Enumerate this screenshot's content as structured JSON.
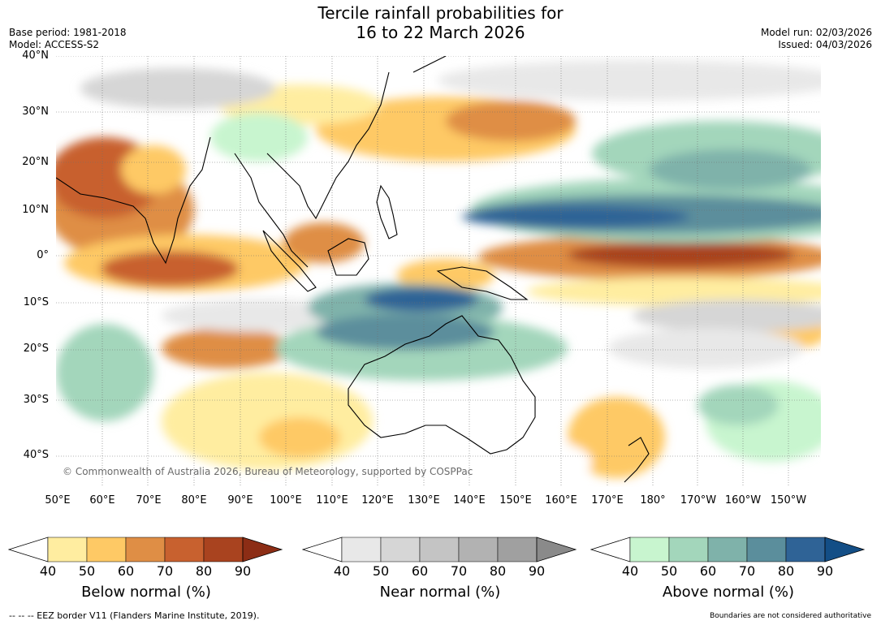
{
  "title_line1": "Tercile rainfall probabilities for",
  "title_line2": "16 to 22 March 2026",
  "base_period": "Base period: 1981-2018",
  "model": "Model: ACCESS-S2",
  "model_run": "Model run: 02/03/2026",
  "issued": "Issued: 04/03/2026",
  "lat_labels": [
    "40°N",
    "30°N",
    "20°N",
    "10°N",
    "0°",
    "10°S",
    "20°S",
    "30°S",
    "40°S"
  ],
  "lon_labels": [
    "50°E",
    "60°E",
    "70°E",
    "80°E",
    "90°E",
    "100°E",
    "110°E",
    "120°E",
    "130°E",
    "140°E",
    "150°E",
    "160°E",
    "170°E",
    "180°",
    "170°W",
    "160°W",
    "150°W"
  ],
  "copyright": "© Commonwealth of Australia 2026, Bureau of Meteorology, supported by COSPPac",
  "legends": [
    {
      "title": "Below normal (%)",
      "ticks": [
        "40",
        "50",
        "60",
        "70",
        "80",
        "90"
      ],
      "colors": [
        "#ffffff",
        "#ffeda0",
        "#fec965",
        "#df8e45",
        "#c8612f",
        "#a9431f",
        "#8c2d15"
      ]
    },
    {
      "title": "Near normal (%)",
      "ticks": [
        "40",
        "50",
        "60",
        "70",
        "80",
        "90"
      ],
      "colors": [
        "#ffffff",
        "#e8e8e8",
        "#d6d6d6",
        "#c4c4c4",
        "#b2b2b2",
        "#a0a0a0",
        "#8a8a8a"
      ]
    },
    {
      "title": "Above normal (%)",
      "ticks": [
        "40",
        "50",
        "60",
        "70",
        "80",
        "90"
      ],
      "colors": [
        "#ffffff",
        "#c8f5cf",
        "#a3d6bb",
        "#7fb2aa",
        "#5b8e9c",
        "#2f6396",
        "#134e86"
      ]
    }
  ],
  "eez_note": "--  --  -- EEZ border V11 (Flanders Marine Institute, 2019).",
  "boundary_note": "Boundaries are not considered authoritative"
}
